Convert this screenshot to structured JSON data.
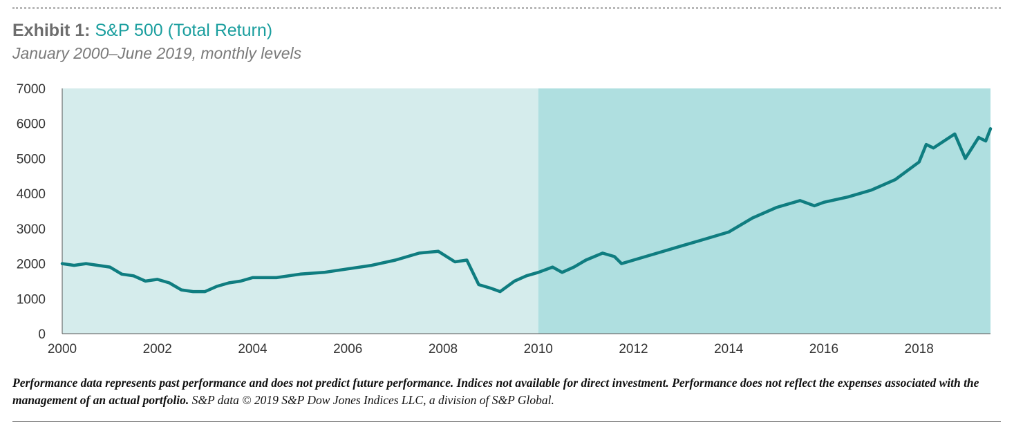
{
  "header": {
    "title_prefix": "Exhibit 1:",
    "title_main": "S&P 500 (Total Return)",
    "subtitle": "January 2000–June 2019, monthly levels"
  },
  "colors": {
    "accent": "#1a9e9e",
    "line": "#0f7d80",
    "band_light": "#d5ecec",
    "band_dark": "#afdfe0"
  },
  "chart_data": {
    "type": "line",
    "title": "S&P 500 (Total Return)",
    "xlabel": "",
    "ylabel": "",
    "xlim": [
      2000,
      2019.5
    ],
    "ylim": [
      0,
      7000
    ],
    "y_ticks": [
      "0",
      "1000",
      "2000",
      "3000",
      "4000",
      "5000",
      "6000",
      "7000"
    ],
    "x_ticks": [
      "2000",
      "2002",
      "2004",
      "2006",
      "2008",
      "2010",
      "2012",
      "2014",
      "2016",
      "2018"
    ],
    "shaded_regions": [
      {
        "from": 2000,
        "to": 2010,
        "shade": "light"
      },
      {
        "from": 2010,
        "to": 2019.5,
        "shade": "dark"
      }
    ],
    "grid": false,
    "legend": "none",
    "series": [
      {
        "x": [
          2000.0,
          2000.25,
          2000.5,
          2000.75,
          2001.0,
          2001.25,
          2001.5,
          2001.75,
          2002.0,
          2002.25,
          2002.5,
          2002.75,
          2003.0,
          2003.25,
          2003.5,
          2003.75,
          2004.0,
          2004.5,
          2005.0,
          2005.5,
          2006.0,
          2006.5,
          2007.0,
          2007.5,
          2007.9,
          2008.25,
          2008.5,
          2008.75,
          2009.0,
          2009.2,
          2009.5,
          2009.75,
          2010.0,
          2010.3,
          2010.5,
          2010.75,
          2011.0,
          2011.35,
          2011.6,
          2011.75,
          2012.0,
          2012.5,
          2013.0,
          2013.5,
          2014.0,
          2014.5,
          2015.0,
          2015.5,
          2015.8,
          2016.0,
          2016.5,
          2017.0,
          2017.5,
          2018.0,
          2018.15,
          2018.3,
          2018.75,
          2018.97,
          2019.25,
          2019.4,
          2019.5
        ],
        "y": [
          2000,
          1950,
          2000,
          1950,
          1900,
          1700,
          1650,
          1500,
          1550,
          1450,
          1250,
          1200,
          1200,
          1350,
          1450,
          1500,
          1600,
          1600,
          1700,
          1750,
          1850,
          1950,
          2100,
          2300,
          2350,
          2050,
          2100,
          1400,
          1300,
          1200,
          1500,
          1650,
          1750,
          1900,
          1750,
          1900,
          2100,
          2300,
          2200,
          2000,
          2100,
          2300,
          2500,
          2700,
          2900,
          3300,
          3600,
          3800,
          3650,
          3750,
          3900,
          4100,
          4400,
          4900,
          5400,
          5300,
          5700,
          5000,
          5600,
          5500,
          5850
        ]
      }
    ]
  },
  "footnote": {
    "text": "Performance data represents past performance and does not predict future performance. Indices not available for direct investment. Performance does not reflect the expenses associated with the management of an actual portfolio.",
    "source": "S&P data © 2019 S&P Dow Jones Indices LLC, a division of S&P Global."
  }
}
